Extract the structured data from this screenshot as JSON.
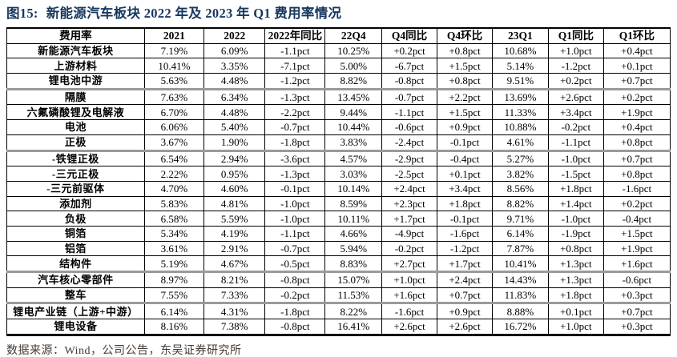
{
  "title": {
    "prefix": "图15:",
    "text": "新能源汽车板块 2022 年及 2023 年 Q1 费用率情况"
  },
  "colors": {
    "title": "#17375E",
    "table_border": "#000000",
    "group_separator": "#9a9a9a",
    "source_text": "#453b34",
    "background": "#ffffff"
  },
  "footer": {
    "source_text": "数据来源：Wind，公司公告，东吴证券研究所"
  },
  "chart_data": {
    "type": "table",
    "title": "图15: 新能源汽车板块 2022 年及 2023 年 Q1 费用率情况",
    "columns": [
      "费用率",
      "2021",
      "2022",
      "2022年同比",
      "22Q4",
      "Q4同比",
      "Q4环比",
      "23Q1",
      "Q1同比",
      "Q1环比"
    ],
    "rows": [
      {
        "label": "新能源汽车板块",
        "values": [
          "7.19%",
          "6.09%",
          "-1.1pct",
          "10.25%",
          "+0.2pct",
          "+0.8pct",
          "10.68%",
          "+1.0pct",
          "+0.4pct"
        ],
        "group_end": false
      },
      {
        "label": "上游材料",
        "values": [
          "10.41%",
          "3.35%",
          "-7.1pct",
          "5.00%",
          "-6.7pct",
          "+1.5pct",
          "5.14%",
          "-1.2pct",
          "+0.1pct"
        ],
        "group_end": false
      },
      {
        "label": "锂电池中游",
        "values": [
          "5.63%",
          "4.48%",
          "-1.2pct",
          "8.82%",
          "-0.8pct",
          "+0.8pct",
          "9.51%",
          "+0.2pct",
          "+0.7pct"
        ],
        "group_end": true
      },
      {
        "label": "隔膜",
        "values": [
          "7.63%",
          "6.34%",
          "-1.3pct",
          "13.45%",
          "-0.7pct",
          "+2.2pct",
          "13.69%",
          "+2.6pct",
          "+0.2pct"
        ],
        "group_end": false
      },
      {
        "label": "六氟磷酸锂及电解液",
        "values": [
          "6.70%",
          "4.48%",
          "-2.2pct",
          "9.44%",
          "-1.1pct",
          "+1.5pct",
          "11.33%",
          "+3.4pct",
          "+1.9pct"
        ],
        "group_end": false
      },
      {
        "label": "电池",
        "values": [
          "6.06%",
          "5.40%",
          "-0.7pct",
          "10.44%",
          "-0.6pct",
          "+0.9pct",
          "10.88%",
          "-0.2pct",
          "+0.4pct"
        ],
        "group_end": false
      },
      {
        "label": "正极",
        "values": [
          "3.67%",
          "1.90%",
          "-1.8pct",
          "3.83%",
          "-2.4pct",
          "-0.1pct",
          "4.61%",
          "-1.1pct",
          "+0.8pct"
        ],
        "group_end": true
      },
      {
        "label": "-铁锂正极",
        "values": [
          "6.54%",
          "2.94%",
          "-3.6pct",
          "4.57%",
          "-2.9pct",
          "-0.4pct",
          "5.27%",
          "-1.0pct",
          "+0.7pct"
        ],
        "group_end": false
      },
      {
        "label": "-三元正极",
        "values": [
          "2.22%",
          "0.95%",
          "-1.3pct",
          "3.03%",
          "-2.5pct",
          "+0.1pct",
          "3.82%",
          "-1.5pct",
          "+0.8pct"
        ],
        "group_end": false
      },
      {
        "label": "-三元前驱体",
        "values": [
          "4.70%",
          "4.60%",
          "-0.1pct",
          "10.14%",
          "+2.4pct",
          "+3.4pct",
          "8.56%",
          "+1.8pct",
          "-1.6pct"
        ],
        "group_end": false
      },
      {
        "label": "添加剂",
        "values": [
          "5.83%",
          "4.81%",
          "-1.0pct",
          "8.59%",
          "+2.3pct",
          "+1.8pct",
          "8.82%",
          "+1.4pct",
          "+0.2pct"
        ],
        "group_end": false
      },
      {
        "label": "负极",
        "values": [
          "6.58%",
          "5.59%",
          "-1.0pct",
          "10.11%",
          "+1.7pct",
          "-0.1pct",
          "9.71%",
          "-1.0pct",
          "-0.4pct"
        ],
        "group_end": false
      },
      {
        "label": "铜箔",
        "values": [
          "5.34%",
          "4.19%",
          "-1.1pct",
          "4.66%",
          "-4.9pct",
          "-1.6pct",
          "6.14%",
          "-1.9pct",
          "+1.5pct"
        ],
        "group_end": false
      },
      {
        "label": "铝箔",
        "values": [
          "3.61%",
          "2.91%",
          "-0.7pct",
          "5.94%",
          "-0.2pct",
          "-1.2pct",
          "7.87%",
          "+0.8pct",
          "+1.9pct"
        ],
        "group_end": false
      },
      {
        "label": "结构件",
        "values": [
          "5.19%",
          "4.67%",
          "-0.5pct",
          "8.83%",
          "+2.7pct",
          "+1.7pct",
          "10.41%",
          "+1.3pct",
          "+1.6pct"
        ],
        "group_end": true
      },
      {
        "label": "汽车核心零部件",
        "values": [
          "8.97%",
          "8.21%",
          "-0.8pct",
          "15.07%",
          "+1.0pct",
          "+2.4pct",
          "14.43%",
          "+1.3pct",
          "-0.6pct"
        ],
        "group_end": false
      },
      {
        "label": "整车",
        "values": [
          "7.55%",
          "7.33%",
          "-0.2pct",
          "11.53%",
          "+1.6pct",
          "+0.7pct",
          "11.83%",
          "+1.8pct",
          "+0.3pct"
        ],
        "group_end": true
      },
      {
        "label": "锂电产业链（上游+中游）",
        "values": [
          "6.14%",
          "4.31%",
          "-1.8pct",
          "8.22%",
          "-1.6pct",
          "+0.9pct",
          "8.88%",
          "+0.1pct",
          "+0.7pct"
        ],
        "group_end": false
      },
      {
        "label": "锂电设备",
        "values": [
          "8.16%",
          "7.38%",
          "-0.8pct",
          "16.41%",
          "+2.6pct",
          "+2.6pct",
          "16.72%",
          "+1.0pct",
          "+0.3pct"
        ],
        "group_end": false
      }
    ]
  }
}
